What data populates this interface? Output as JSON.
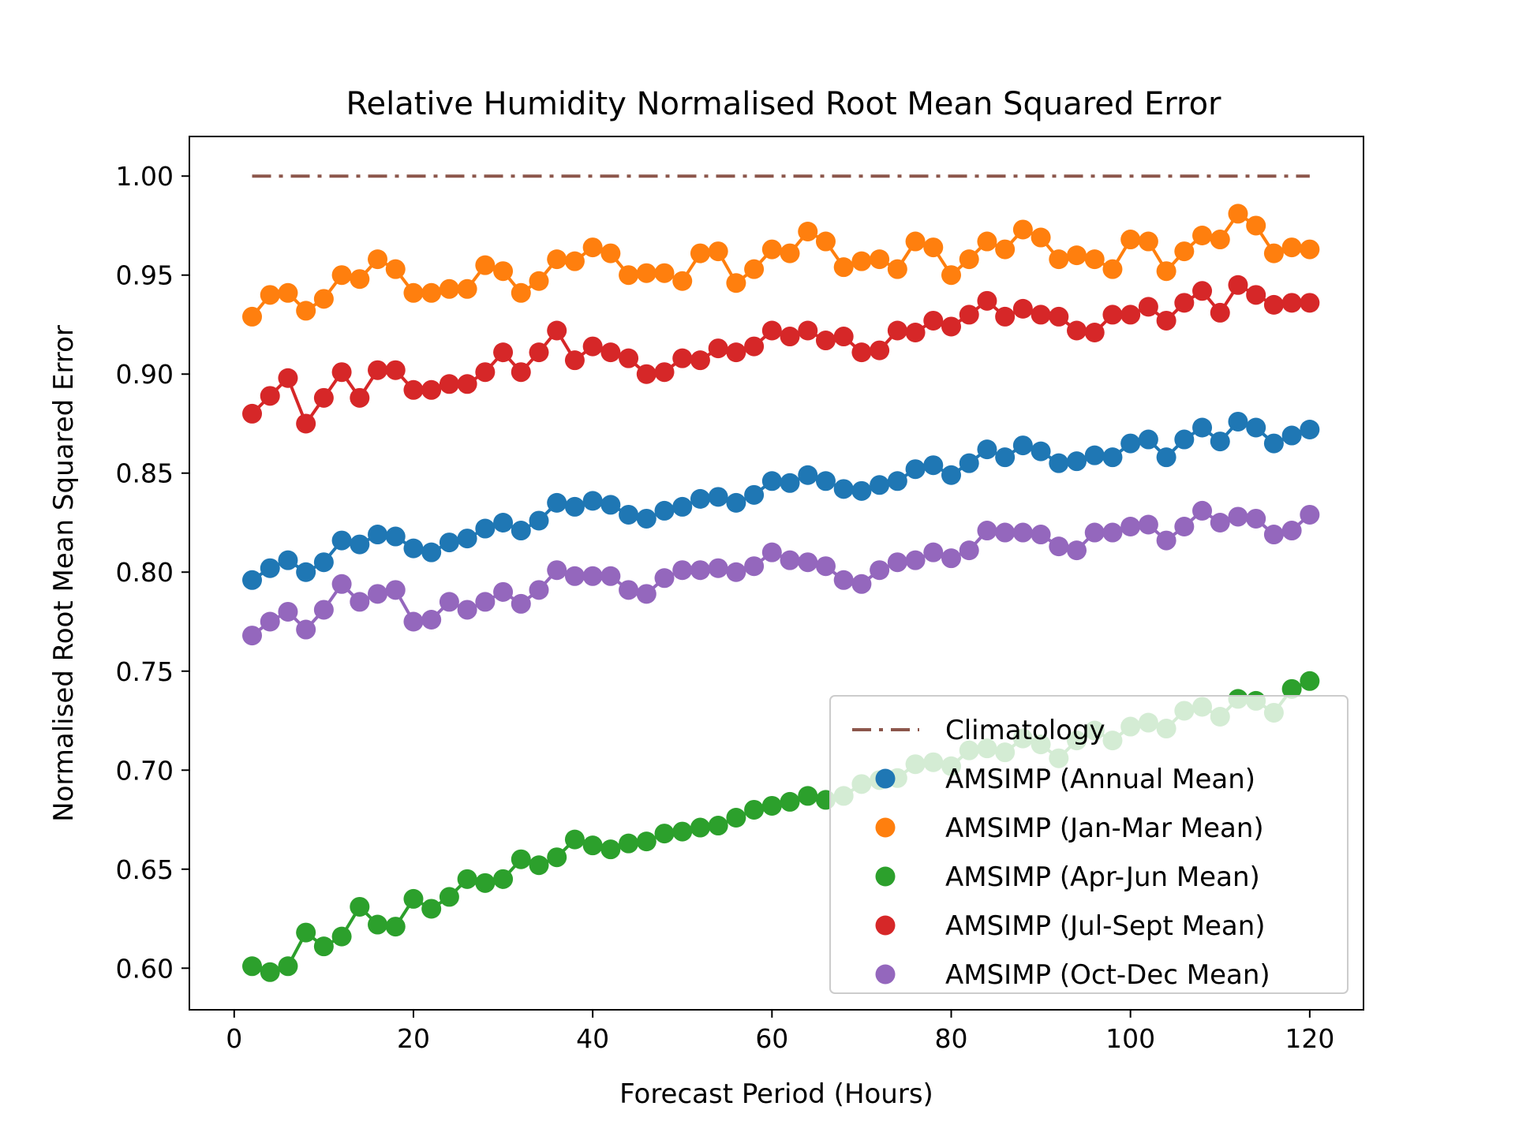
{
  "chart_data": {
    "type": "line",
    "title": "Relative Humidity Normalised Root Mean Squared Error",
    "xlabel": "Forecast Period (Hours)",
    "ylabel": "Normalised Root Mean Squared Error",
    "xlim": [
      -5,
      126
    ],
    "ylim": [
      0.579,
      1.02
    ],
    "xticks": [
      0,
      20,
      40,
      60,
      80,
      100,
      120
    ],
    "yticks": [
      0.6,
      0.65,
      0.7,
      0.75,
      0.8,
      0.85,
      0.9,
      0.95,
      1.0
    ],
    "ytick_labels": [
      "0.60",
      "0.65",
      "0.70",
      "0.75",
      "0.80",
      "0.85",
      "0.90",
      "0.95",
      "1.00"
    ],
    "grid": false,
    "legend_position": "bottom-right",
    "x": [
      2,
      4,
      6,
      8,
      10,
      12,
      14,
      16,
      18,
      20,
      22,
      24,
      26,
      28,
      30,
      32,
      34,
      36,
      38,
      40,
      42,
      44,
      46,
      48,
      50,
      52,
      54,
      56,
      58,
      60,
      62,
      64,
      66,
      68,
      70,
      72,
      74,
      76,
      78,
      80,
      82,
      84,
      86,
      88,
      90,
      92,
      94,
      96,
      98,
      100,
      102,
      104,
      106,
      108,
      110,
      112,
      114,
      116,
      118,
      120
    ],
    "climatology": {
      "name": "Climatology",
      "color": "#8c564b",
      "value": 1.0,
      "x_range": [
        2,
        120
      ]
    },
    "series": [
      {
        "name": "AMSIMP (Annual Mean)",
        "color": "#1f77b4",
        "values": [
          0.796,
          0.802,
          0.806,
          0.8,
          0.805,
          0.816,
          0.814,
          0.819,
          0.818,
          0.812,
          0.81,
          0.815,
          0.817,
          0.822,
          0.825,
          0.821,
          0.826,
          0.835,
          0.833,
          0.836,
          0.834,
          0.829,
          0.827,
          0.831,
          0.833,
          0.837,
          0.838,
          0.835,
          0.839,
          0.846,
          0.845,
          0.849,
          0.846,
          0.842,
          0.841,
          0.844,
          0.846,
          0.852,
          0.854,
          0.849,
          0.855,
          0.862,
          0.858,
          0.864,
          0.861,
          0.855,
          0.856,
          0.859,
          0.858,
          0.865,
          0.867,
          0.858,
          0.867,
          0.873,
          0.866,
          0.876,
          0.873,
          0.865,
          0.869,
          0.872
        ]
      },
      {
        "name": "AMSIMP (Jan-Mar Mean)",
        "color": "#ff7f0e",
        "values": [
          0.929,
          0.94,
          0.941,
          0.932,
          0.938,
          0.95,
          0.948,
          0.958,
          0.953,
          0.941,
          0.941,
          0.943,
          0.943,
          0.955,
          0.952,
          0.941,
          0.947,
          0.958,
          0.957,
          0.964,
          0.961,
          0.95,
          0.951,
          0.951,
          0.947,
          0.961,
          0.962,
          0.946,
          0.953,
          0.963,
          0.961,
          0.972,
          0.967,
          0.954,
          0.957,
          0.958,
          0.953,
          0.967,
          0.964,
          0.95,
          0.958,
          0.967,
          0.963,
          0.973,
          0.969,
          0.958,
          0.96,
          0.958,
          0.953,
          0.968,
          0.967,
          0.952,
          0.962,
          0.97,
          0.968,
          0.981,
          0.975,
          0.961,
          0.964,
          0.963
        ]
      },
      {
        "name": "AMSIMP (Apr-Jun Mean)",
        "color": "#2ca02c",
        "values": [
          0.601,
          0.598,
          0.601,
          0.618,
          0.611,
          0.616,
          0.631,
          0.622,
          0.621,
          0.635,
          0.63,
          0.636,
          0.645,
          0.643,
          0.645,
          0.655,
          0.652,
          0.656,
          0.665,
          0.662,
          0.66,
          0.663,
          0.664,
          0.668,
          0.669,
          0.671,
          0.672,
          0.676,
          0.68,
          0.682,
          0.684,
          0.687,
          0.685,
          0.687,
          0.693,
          0.695,
          0.696,
          0.703,
          0.704,
          0.702,
          0.71,
          0.711,
          0.709,
          0.716,
          0.713,
          0.706,
          0.715,
          0.72,
          0.715,
          0.722,
          0.724,
          0.721,
          0.73,
          0.732,
          0.727,
          0.736,
          0.735,
          0.729,
          0.741,
          0.745
        ]
      },
      {
        "name": "AMSIMP (Jul-Sept Mean)",
        "color": "#d62728",
        "values": [
          0.88,
          0.889,
          0.898,
          0.875,
          0.888,
          0.901,
          0.888,
          0.902,
          0.902,
          0.892,
          0.892,
          0.895,
          0.895,
          0.901,
          0.911,
          0.901,
          0.911,
          0.922,
          0.907,
          0.914,
          0.911,
          0.908,
          0.9,
          0.901,
          0.908,
          0.907,
          0.913,
          0.911,
          0.914,
          0.922,
          0.919,
          0.922,
          0.917,
          0.919,
          0.911,
          0.912,
          0.922,
          0.921,
          0.927,
          0.924,
          0.93,
          0.937,
          0.929,
          0.933,
          0.93,
          0.929,
          0.922,
          0.921,
          0.93,
          0.93,
          0.934,
          0.927,
          0.936,
          0.942,
          0.931,
          0.945,
          0.94,
          0.935,
          0.936,
          0.936
        ]
      },
      {
        "name": "AMSIMP (Oct-Dec Mean)",
        "color": "#9467bd",
        "values": [
          0.768,
          0.775,
          0.78,
          0.771,
          0.781,
          0.794,
          0.785,
          0.789,
          0.791,
          0.775,
          0.776,
          0.785,
          0.781,
          0.785,
          0.79,
          0.784,
          0.791,
          0.801,
          0.798,
          0.798,
          0.798,
          0.791,
          0.789,
          0.797,
          0.801,
          0.801,
          0.802,
          0.8,
          0.803,
          0.81,
          0.806,
          0.805,
          0.803,
          0.796,
          0.794,
          0.801,
          0.805,
          0.806,
          0.81,
          0.807,
          0.811,
          0.821,
          0.82,
          0.82,
          0.819,
          0.813,
          0.811,
          0.82,
          0.82,
          0.823,
          0.824,
          0.816,
          0.823,
          0.831,
          0.825,
          0.828,
          0.827,
          0.819,
          0.821,
          0.829
        ]
      }
    ]
  }
}
